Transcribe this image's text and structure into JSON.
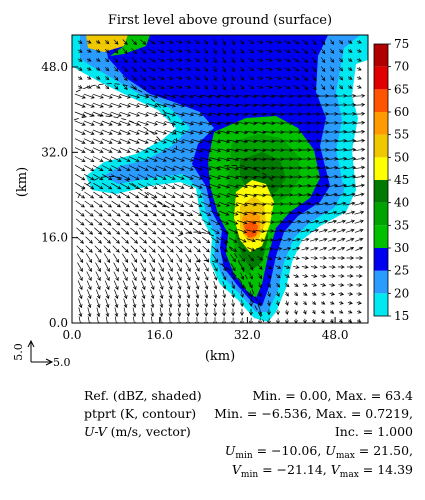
{
  "chart_data": {
    "type": "heatmap",
    "title": "First level above ground (surface)",
    "xlabel": "(km)",
    "ylabel": "(km)",
    "xlim": [
      0,
      54
    ],
    "ylim": [
      0,
      54
    ],
    "x_ticks": [
      "0.0",
      "16.0",
      "32.0",
      "48.0"
    ],
    "y_ticks": [
      "0.0",
      "16.0",
      "32.0",
      "48.0"
    ],
    "colorbar": {
      "levels": [
        "15",
        "20",
        "25",
        "30",
        "35",
        "40",
        "45",
        "50",
        "55",
        "60",
        "65",
        "70",
        "75"
      ],
      "colors": [
        "#00e8f0",
        "#2a9bff",
        "#0000f0",
        "#00c000",
        "#00a300",
        "#007a00",
        "#ffff00",
        "#f0c800",
        "#ff9a00",
        "#ff5500",
        "#e00000",
        "#b00000"
      ]
    },
    "vector_key": {
      "u_label": "5.0",
      "v_label": "5.0"
    },
    "fields": {
      "reflectivity": {
        "label": "Ref. (dBZ, shaded)",
        "stats": "Min. = 0.00, Max. = 63.4"
      },
      "ptprt": {
        "label": "ptprt (K, contour)",
        "stats": "Min. = −6.536, Max. = 0.7219,",
        "inc": "Inc. = 1.000"
      },
      "wind": {
        "label_var": "U-V",
        "label_units": " (m/s, vector)",
        "u_min_label": "U",
        "u_min_sub": "min",
        "u_min_val": " = −10.06, ",
        "u_max_label": "U",
        "u_max_sub": "max",
        "u_max_val": " = 21.50,",
        "v_min_label": "V",
        "v_min_sub": "min",
        "v_min_val": " = −21.14, ",
        "v_max_label": "V",
        "v_max_sub": "max",
        "v_max_val": " = 14.39"
      }
    }
  }
}
